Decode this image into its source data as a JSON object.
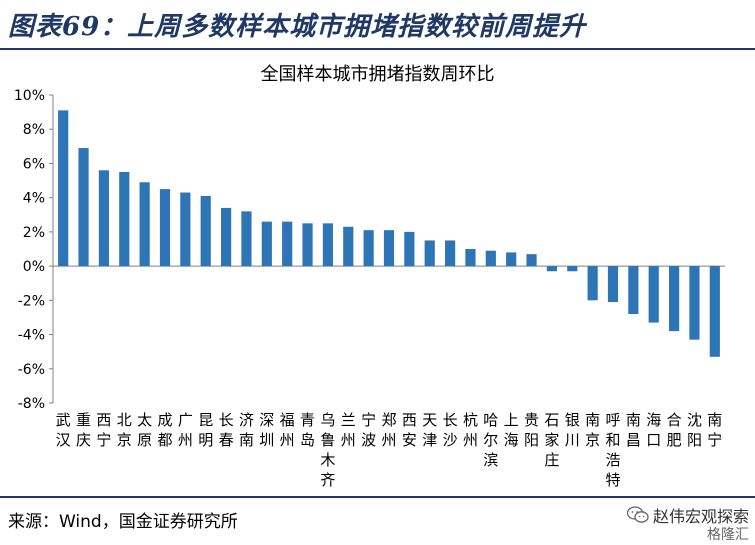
{
  "header": {
    "title": "图表69：上周多数样本城市拥堵指数较前周提升"
  },
  "footer": {
    "source": "来源：Wind，国金证券研究所",
    "watermark": "赵伟宏观探索",
    "watermark_sub": "格隆汇",
    "watermark_icon": "wechat-icon"
  },
  "chart_data": {
    "type": "bar",
    "title": "全国样本城市拥堵指数周环比",
    "xlabel": "",
    "ylabel": "",
    "ylim": [
      -8,
      10
    ],
    "yticks": [
      10,
      8,
      6,
      4,
      2,
      0,
      -2,
      -4,
      -6,
      -8
    ],
    "ytick_labels": [
      "10%",
      "8%",
      "6%",
      "4%",
      "2%",
      "0%",
      "-2%",
      "-4%",
      "-6%",
      "-8%"
    ],
    "grid": false,
    "bar_color": "#2e75b6",
    "categories": [
      "武汉",
      "重庆",
      "西宁",
      "北京",
      "太原",
      "成都",
      "广州",
      "昆明",
      "长春",
      "济南",
      "深圳",
      "福州",
      "青岛",
      "乌鲁木齐",
      "兰州",
      "宁波",
      "郑州",
      "西安",
      "天津",
      "长沙",
      "杭州",
      "哈尔滨",
      "上海",
      "贵阳",
      "石家庄",
      "银川",
      "南京",
      "呼和浩特",
      "南昌",
      "海口",
      "合肥",
      "沈阳",
      "南宁"
    ],
    "values": [
      9.1,
      6.9,
      5.6,
      5.5,
      4.9,
      4.5,
      4.3,
      4.1,
      3.4,
      3.2,
      2.6,
      2.6,
      2.5,
      2.5,
      2.3,
      2.1,
      2.1,
      2.0,
      1.5,
      1.5,
      1.0,
      0.9,
      0.8,
      0.7,
      -0.3,
      -0.3,
      -2.0,
      -2.1,
      -2.8,
      -3.3,
      -3.8,
      -4.3,
      -5.3
    ]
  }
}
